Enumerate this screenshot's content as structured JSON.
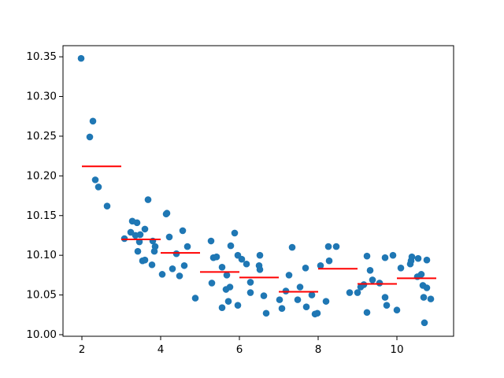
{
  "chart_data": {
    "type": "scatter",
    "xlim": [
      1.52,
      11.44
    ],
    "ylim": [
      9.998,
      10.364
    ],
    "xticks": [
      2,
      4,
      6,
      8,
      10
    ],
    "yticks": [
      {
        "value": 10.0,
        "label": "10.00"
      },
      10.05,
      {
        "value": 10.1,
        "label": "10.10"
      },
      10.15,
      {
        "value": 10.2,
        "label": "10.20"
      },
      10.25,
      {
        "value": 10.3,
        "label": "10.30"
      },
      10.35
    ],
    "series": [
      {
        "color": "#1f77b4",
        "x": [
          1.98,
          2.2,
          2.28,
          2.34,
          2.42,
          2.64,
          3.08,
          3.24,
          3.28,
          3.36,
          3.4,
          3.42,
          3.46,
          3.48,
          3.54,
          3.6,
          3.6,
          3.68,
          3.78,
          3.8,
          3.84,
          3.86,
          4.04,
          4.14,
          4.16,
          4.22,
          4.3,
          4.4,
          4.48,
          4.56,
          4.6,
          4.68,
          4.88,
          5.28,
          5.3,
          5.34,
          5.42,
          5.56,
          5.56,
          5.66,
          5.68,
          5.72,
          5.76,
          5.78,
          5.88,
          5.96,
          5.96,
          6.06,
          6.18,
          6.28,
          6.28,
          6.5,
          6.52,
          6.52,
          6.62,
          6.68,
          7.02,
          7.08,
          7.18,
          7.26,
          7.34,
          7.48,
          7.54,
          7.68,
          7.7,
          7.84,
          7.92,
          7.98,
          8.06,
          8.2,
          8.26,
          8.28,
          8.46,
          8.8,
          9.0,
          9.08,
          9.16,
          9.24,
          9.24,
          9.32,
          9.38,
          9.56,
          9.7,
          9.7,
          9.74,
          9.9,
          10.0,
          10.1,
          10.34,
          10.36,
          10.38,
          10.52,
          10.54,
          10.62,
          10.66,
          10.68,
          10.7,
          10.76,
          10.76,
          10.86
        ],
        "values": [
          10.348,
          10.249,
          10.269,
          10.195,
          10.186,
          10.162,
          10.121,
          10.129,
          10.143,
          10.125,
          10.141,
          10.105,
          10.117,
          10.126,
          10.093,
          10.094,
          10.133,
          10.17,
          10.088,
          10.118,
          10.105,
          10.111,
          10.076,
          10.152,
          10.153,
          10.123,
          10.083,
          10.102,
          10.074,
          10.131,
          10.087,
          10.111,
          10.046,
          10.118,
          10.065,
          10.097,
          10.098,
          10.034,
          10.085,
          10.057,
          10.075,
          10.042,
          10.06,
          10.112,
          10.128,
          10.1,
          10.037,
          10.095,
          10.089,
          10.066,
          10.053,
          10.087,
          10.1,
          10.082,
          10.049,
          10.027,
          10.044,
          10.033,
          10.055,
          10.075,
          10.11,
          10.044,
          10.06,
          10.084,
          10.035,
          10.05,
          10.026,
          10.027,
          10.087,
          10.042,
          10.111,
          10.093,
          10.111,
          10.053,
          10.053,
          10.06,
          10.063,
          10.099,
          10.028,
          10.081,
          10.069,
          10.065,
          10.097,
          10.047,
          10.037,
          10.1,
          10.031,
          10.084,
          10.089,
          10.093,
          10.098,
          10.073,
          10.096,
          10.076,
          10.062,
          10.047,
          10.015,
          10.094,
          10.059,
          10.045
        ]
      }
    ],
    "segments": {
      "color": "#ff0000",
      "bins": [
        2,
        3,
        4,
        5,
        6,
        7,
        8,
        9,
        10,
        11
      ],
      "values": [
        10.212,
        10.12,
        10.103,
        10.079,
        10.072,
        10.054,
        10.083,
        10.064,
        10.071
      ]
    }
  }
}
